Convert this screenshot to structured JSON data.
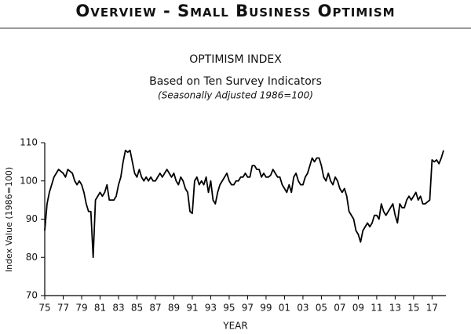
{
  "header": {
    "title": "Overview - Small Business Optimism"
  },
  "chart_data": {
    "type": "line",
    "title": "OPTIMISM INDEX",
    "subtitle": "Based on Ten Survey Indicators",
    "note": "(Seasonally Adjusted 1986=100)",
    "xlabel": "YEAR",
    "ylabel": "Index Value (1986=100)",
    "color": "#000000",
    "ylim": [
      70,
      110
    ],
    "yticks": [
      70,
      80,
      90,
      100,
      110
    ],
    "xlim": [
      1975,
      2018.5
    ],
    "xticks": [
      {
        "value": 1975,
        "label": "75"
      },
      {
        "value": 1977,
        "label": "77"
      },
      {
        "value": 1979,
        "label": "79"
      },
      {
        "value": 1981,
        "label": "81"
      },
      {
        "value": 1983,
        "label": "83"
      },
      {
        "value": 1985,
        "label": "85"
      },
      {
        "value": 1987,
        "label": "87"
      },
      {
        "value": 1989,
        "label": "89"
      },
      {
        "value": 1991,
        "label": "91"
      },
      {
        "value": 1993,
        "label": "93"
      },
      {
        "value": 1995,
        "label": "95"
      },
      {
        "value": 1997,
        "label": "97"
      },
      {
        "value": 1999,
        "label": "99"
      },
      {
        "value": 2001,
        "label": "01"
      },
      {
        "value": 2003,
        "label": "03"
      },
      {
        "value": 2005,
        "label": "05"
      },
      {
        "value": 2007,
        "label": "07"
      },
      {
        "value": 2009,
        "label": "09"
      },
      {
        "value": 2011,
        "label": "11"
      },
      {
        "value": 2013,
        "label": "13"
      },
      {
        "value": 2015,
        "label": "15"
      },
      {
        "value": 2017,
        "label": "17"
      }
    ],
    "x": [
      1975,
      1975.25,
      1975.5,
      1975.75,
      1976,
      1976.25,
      1976.5,
      1976.75,
      1977,
      1977.25,
      1977.5,
      1977.75,
      1978,
      1978.25,
      1978.5,
      1978.75,
      1979,
      1979.25,
      1979.5,
      1979.75,
      1980,
      1980.25,
      1980.5,
      1980.75,
      1981,
      1981.25,
      1981.5,
      1981.75,
      1982,
      1982.25,
      1982.5,
      1982.75,
      1983,
      1983.25,
      1983.5,
      1983.75,
      1984,
      1984.25,
      1984.5,
      1984.75,
      1985,
      1985.25,
      1985.5,
      1985.75,
      1986,
      1986.25,
      1986.5,
      1986.75,
      1987,
      1987.25,
      1987.5,
      1987.75,
      1988,
      1988.25,
      1988.5,
      1988.75,
      1989,
      1989.25,
      1989.5,
      1989.75,
      1990,
      1990.25,
      1990.5,
      1990.75,
      1991,
      1991.25,
      1991.5,
      1991.75,
      1992,
      1992.25,
      1992.5,
      1992.75,
      1993,
      1993.25,
      1993.5,
      1993.75,
      1994,
      1994.25,
      1994.5,
      1994.75,
      1995,
      1995.25,
      1995.5,
      1995.75,
      1996,
      1996.25,
      1996.5,
      1996.75,
      1997,
      1997.25,
      1997.5,
      1997.75,
      1998,
      1998.25,
      1998.5,
      1998.75,
      1999,
      1999.25,
      1999.5,
      1999.75,
      2000,
      2000.25,
      2000.5,
      2000.75,
      2001,
      2001.25,
      2001.5,
      2001.75,
      2002,
      2002.25,
      2002.5,
      2002.75,
      2003,
      2003.25,
      2003.5,
      2003.75,
      2004,
      2004.25,
      2004.5,
      2004.75,
      2005,
      2005.25,
      2005.5,
      2005.75,
      2006,
      2006.25,
      2006.5,
      2006.75,
      2007,
      2007.25,
      2007.5,
      2007.75,
      2008,
      2008.25,
      2008.5,
      2008.75,
      2009,
      2009.25,
      2009.5,
      2009.75,
      2010,
      2010.25,
      2010.5,
      2010.75,
      2011,
      2011.25,
      2011.5,
      2011.75,
      2012,
      2012.25,
      2012.5,
      2012.75,
      2013,
      2013.25,
      2013.5,
      2013.75,
      2014,
      2014.25,
      2014.5,
      2014.75,
      2015,
      2015.25,
      2015.5,
      2015.75,
      2016,
      2016.25,
      2016.5,
      2016.75,
      2017,
      2017.25,
      2017.5,
      2017.75,
      2018,
      2018.25
    ],
    "values": [
      87,
      94,
      97,
      99,
      101,
      102,
      103,
      102.5,
      102,
      101,
      103,
      102.5,
      102,
      100,
      99,
      100,
      99,
      97,
      94,
      92,
      92,
      80,
      95,
      96,
      97,
      96,
      97,
      99,
      95,
      95,
      95,
      96,
      99,
      101,
      105,
      108,
      107.5,
      108,
      105,
      102,
      101,
      103,
      101,
      100,
      101,
      100,
      101,
      100,
      100,
      101,
      102,
      101,
      102,
      103,
      102,
      101,
      102,
      100,
      99,
      101,
      100,
      98,
      97,
      92,
      91.5,
      100,
      101,
      99,
      100,
      99,
      101,
      97,
      100,
      95,
      94,
      97,
      99,
      100,
      101,
      102,
      100,
      99,
      99,
      100,
      100,
      101,
      101,
      102,
      101,
      101,
      104,
      104,
      103,
      103,
      101,
      102,
      101,
      101,
      101.5,
      103,
      102,
      101,
      101,
      99,
      98,
      97,
      99,
      97,
      101,
      102,
      100,
      99,
      99,
      101,
      102,
      104,
      106,
      105,
      106,
      106,
      104,
      101,
      100,
      102,
      100,
      99,
      101,
      100,
      98,
      97,
      98,
      96,
      92,
      91,
      90,
      87,
      86,
      84,
      87,
      88,
      89,
      88,
      89,
      91,
      91,
      90,
      94,
      92,
      91,
      92,
      93,
      94,
      91,
      89,
      94,
      93,
      93,
      95,
      96,
      95,
      96,
      97,
      95,
      96,
      94,
      94,
      94.5,
      95,
      105.5,
      105,
      105.5,
      104.5,
      106,
      108
    ]
  }
}
